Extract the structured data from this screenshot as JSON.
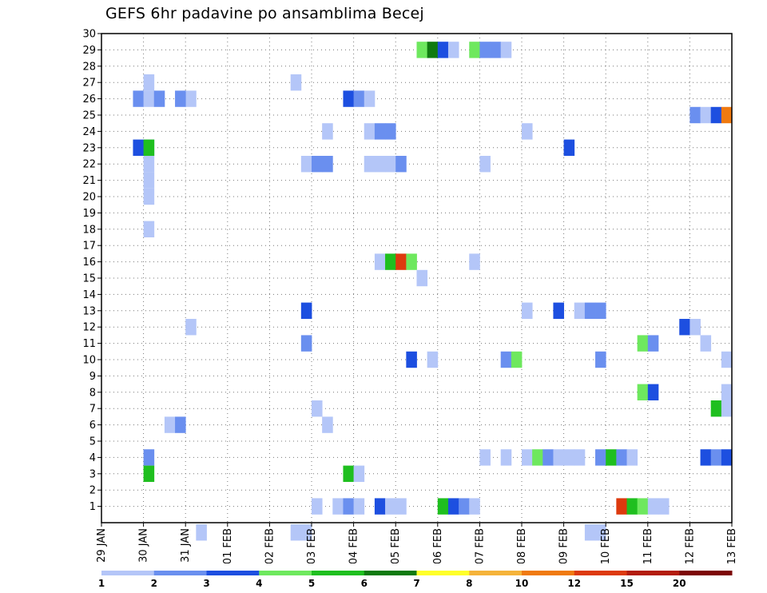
{
  "title": "GEFS 6hr padavine po ansamblima Becej",
  "chart_data": {
    "type": "heatmap",
    "title": "GEFS 6hr padavine po ansamblima Becej",
    "x_ticks": [
      "29 JAN",
      "30 JAN",
      "31 JAN",
      "01 FEB",
      "02 FEB",
      "03 FEB",
      "04 FEB",
      "05 FEB",
      "06 FEB",
      "07 FEB",
      "08 FEB",
      "09 FEB",
      "10 FEB",
      "11 FEB",
      "12 FEB",
      "13 FEB"
    ],
    "y_ticks": [
      "1",
      "2",
      "3",
      "4",
      "5",
      "6",
      "7",
      "8",
      "9",
      "10",
      "11",
      "12",
      "13",
      "14",
      "15",
      "16",
      "17",
      "18",
      "19",
      "20",
      "21",
      "22",
      "23",
      "24",
      "25",
      "26",
      "27",
      "28",
      "29",
      "30"
    ],
    "x_range_days": [
      0,
      15
    ],
    "y_range": [
      0,
      30
    ],
    "grid": true,
    "legend_placement": "bottom",
    "legend": {
      "thresholds": [
        "1",
        "2",
        "3",
        "4",
        "5",
        "6",
        "7",
        "8",
        "10",
        "12",
        "15",
        "20"
      ],
      "colors": [
        "#b4c6f8",
        "#6a8fef",
        "#1d4fe0",
        "#6ee85e",
        "#1fbf1f",
        "#0f7a0f",
        "#ffff2a",
        "#f5b33a",
        "#f07a10",
        "#dd3a0e",
        "#b31c0c",
        "#7d0606"
      ]
    },
    "cells": [
      [
        1.0,
        27,
        0
      ],
      [
        0.75,
        26,
        1
      ],
      [
        1.0,
        26,
        0
      ],
      [
        1.25,
        26,
        1
      ],
      [
        2.0,
        26,
        0
      ],
      [
        1.75,
        26,
        1
      ],
      [
        1.0,
        23,
        1
      ],
      [
        1.0,
        22,
        0
      ],
      [
        1.0,
        21,
        0
      ],
      [
        1.0,
        20,
        0
      ],
      [
        1.0,
        18,
        0
      ],
      [
        0.75,
        23,
        2
      ],
      [
        1.0,
        23,
        4
      ],
      [
        1.0,
        4,
        1
      ],
      [
        1.0,
        3,
        4
      ],
      [
        1.5,
        6,
        0
      ],
      [
        1.75,
        6,
        1
      ],
      [
        2.0,
        12,
        0
      ],
      [
        2.25,
        -0.6,
        0
      ],
      [
        4.5,
        27,
        0
      ],
      [
        4.5,
        -0.6,
        0
      ],
      [
        4.75,
        -0.6,
        0
      ],
      [
        4.75,
        22,
        0
      ],
      [
        5.0,
        22,
        1
      ],
      [
        5.25,
        22,
        1
      ],
      [
        4.75,
        13,
        2
      ],
      [
        4.75,
        11,
        1
      ],
      [
        5.0,
        7,
        0
      ],
      [
        5.25,
        6,
        0
      ],
      [
        5.25,
        24,
        0
      ],
      [
        5.0,
        1,
        0
      ],
      [
        5.5,
        1,
        0
      ],
      [
        5.75,
        1,
        1
      ],
      [
        6.0,
        1,
        0
      ],
      [
        5.75,
        26,
        2
      ],
      [
        6.0,
        26,
        1
      ],
      [
        6.25,
        26,
        0
      ],
      [
        5.75,
        3,
        4
      ],
      [
        6.0,
        3,
        0
      ],
      [
        6.25,
        22,
        0
      ],
      [
        6.5,
        22,
        0
      ],
      [
        6.25,
        24,
        0
      ],
      [
        6.5,
        24,
        1
      ],
      [
        6.75,
        24,
        1
      ],
      [
        6.5,
        16,
        0
      ],
      [
        6.75,
        16,
        4
      ],
      [
        7.0,
        16,
        9
      ],
      [
        7.25,
        16,
        3
      ],
      [
        7.5,
        15,
        0
      ],
      [
        7.25,
        10,
        2
      ],
      [
        6.75,
        22,
        0
      ],
      [
        7.0,
        22,
        1
      ],
      [
        6.5,
        1,
        2
      ],
      [
        6.75,
        1,
        0
      ],
      [
        7.0,
        1,
        0
      ],
      [
        7.5,
        29,
        3
      ],
      [
        7.75,
        29,
        5
      ],
      [
        8.0,
        29,
        2
      ],
      [
        8.25,
        29,
        0
      ],
      [
        7.75,
        10,
        0
      ],
      [
        8.0,
        1,
        4
      ],
      [
        8.25,
        1,
        2
      ],
      [
        8.5,
        1,
        1
      ],
      [
        8.75,
        1,
        0
      ],
      [
        8.75,
        29,
        3
      ],
      [
        9.0,
        29,
        1
      ],
      [
        9.25,
        29,
        1
      ],
      [
        9.5,
        29,
        0
      ],
      [
        8.75,
        16,
        0
      ],
      [
        9.0,
        22,
        0
      ],
      [
        9.0,
        4,
        0
      ],
      [
        9.5,
        4,
        0
      ],
      [
        9.5,
        10,
        1
      ],
      [
        9.75,
        10,
        3
      ],
      [
        10.0,
        13,
        0
      ],
      [
        10.0,
        24,
        0
      ],
      [
        10.0,
        4,
        0
      ],
      [
        10.25,
        4,
        3
      ],
      [
        10.5,
        4,
        1
      ],
      [
        10.75,
        4,
        0
      ],
      [
        11.0,
        4,
        0
      ],
      [
        11.25,
        4,
        0
      ],
      [
        10.75,
        13,
        2
      ],
      [
        11.0,
        23,
        2
      ],
      [
        11.25,
        13,
        0
      ],
      [
        11.5,
        13,
        1
      ],
      [
        11.75,
        13,
        1
      ],
      [
        11.75,
        10,
        1
      ],
      [
        11.75,
        4,
        1
      ],
      [
        12.0,
        4,
        4
      ],
      [
        12.25,
        4,
        1
      ],
      [
        12.5,
        4,
        0
      ],
      [
        11.5,
        -0.6,
        0
      ],
      [
        11.75,
        -0.6,
        0
      ],
      [
        12.25,
        1,
        9
      ],
      [
        12.5,
        1,
        4
      ],
      [
        12.75,
        1,
        3
      ],
      [
        13.0,
        1,
        0
      ],
      [
        13.25,
        1,
        0
      ],
      [
        12.75,
        11,
        3
      ],
      [
        13.0,
        11,
        1
      ],
      [
        12.75,
        8,
        3
      ],
      [
        13.0,
        8,
        2
      ],
      [
        13.75,
        12,
        2
      ],
      [
        14.0,
        12,
        0
      ],
      [
        14.25,
        11,
        0
      ],
      [
        14.0,
        25,
        1
      ],
      [
        14.25,
        25,
        0
      ],
      [
        14.5,
        25,
        2
      ],
      [
        14.75,
        25,
        8
      ],
      [
        14.75,
        10,
        0
      ],
      [
        14.75,
        8,
        0
      ],
      [
        14.5,
        7,
        4
      ],
      [
        14.75,
        7,
        0
      ],
      [
        14.25,
        4,
        2
      ],
      [
        14.5,
        4,
        1
      ],
      [
        14.75,
        4,
        2
      ]
    ]
  }
}
